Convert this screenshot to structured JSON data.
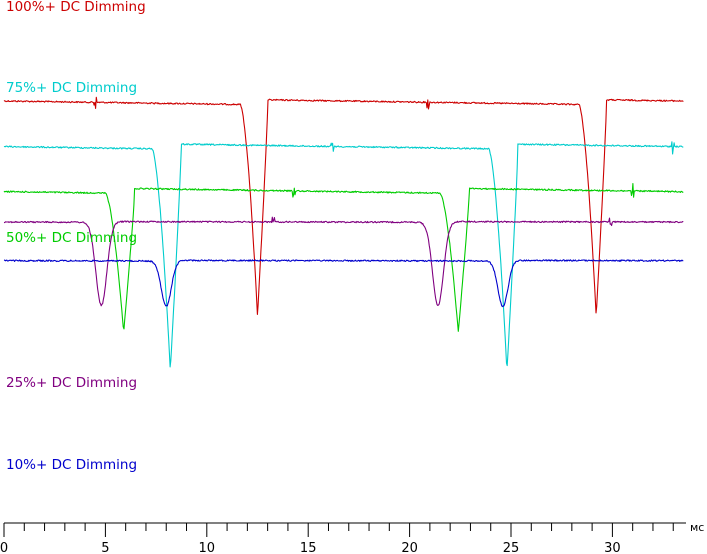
{
  "chart_data": {
    "type": "line",
    "title": "",
    "xlabel": "мс",
    "ylabel": "",
    "xlim": [
      0,
      33.5
    ],
    "xticks": [
      0,
      5,
      10,
      15,
      20,
      25,
      30
    ],
    "minor_tick_step": 1,
    "grid": false,
    "legend": "none",
    "series": [
      {
        "name": "100%+ DC Dimming",
        "color": "#cc0000",
        "level": 0.18,
        "shape": "sawtooth",
        "dips": [
          12.5,
          29.2
        ],
        "dip_width": 0.85,
        "dip_depth": 0.84,
        "dip_recovery": "instant",
        "glitches": [
          4.5,
          20.9
        ]
      },
      {
        "name": "75%+ DC Dimming",
        "color": "#00cccc",
        "level": 0.26,
        "shape": "sawtooth",
        "dips": [
          8.2,
          24.8
        ],
        "dip_width": 0.9,
        "dip_depth": 0.88,
        "dip_recovery": "instant",
        "glitches": [
          16.2,
          33.0
        ]
      },
      {
        "name": "50%+ DC Dimming",
        "color": "#00cc00",
        "level": 0.34,
        "shape": "sawtooth",
        "dips": [
          5.9,
          22.4
        ],
        "dip_width": 0.9,
        "dip_depth": 0.55,
        "dip_recovery": "instant",
        "glitches": [
          14.3,
          31.0
        ]
      },
      {
        "name": "25%+ DC Dimming",
        "color": "#800080",
        "level": 0.4,
        "shape": "flat",
        "dips": [
          4.8,
          21.4
        ],
        "dip_width": 0.6,
        "dip_depth": 0.33,
        "dip_recovery": "smooth",
        "glitches": [
          13.3,
          29.9
        ]
      },
      {
        "name": "10%+ DC Dimming",
        "color": "#0000cc",
        "level": 0.47,
        "shape": "flat",
        "dips": [
          8.0,
          24.6
        ],
        "dip_width": 0.55,
        "dip_depth": 0.18,
        "dip_recovery": "smooth",
        "glitches": []
      }
    ]
  }
}
